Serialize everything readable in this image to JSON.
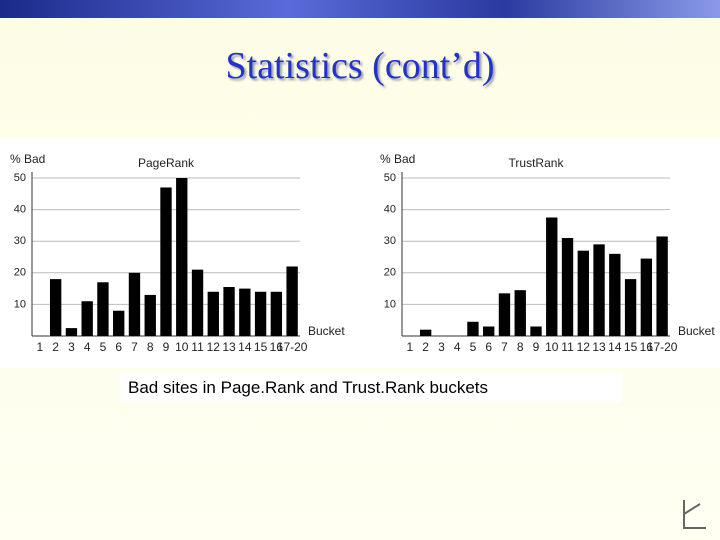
{
  "slide_title": "Statistics (cont’d)",
  "caption": "Bad sites in Page.Rank and Trust.Rank buckets",
  "chart_data": [
    {
      "type": "bar",
      "title": "PageRank",
      "y_label": "% Bad",
      "x_label": "Bucket",
      "categories": [
        "1",
        "2",
        "3",
        "4",
        "5",
        "6",
        "7",
        "8",
        "9",
        "10",
        "11",
        "12",
        "13",
        "14",
        "15",
        "16",
        "17-20"
      ],
      "values": [
        0,
        18,
        2.5,
        11,
        17,
        8,
        20,
        13,
        47,
        50,
        21,
        14,
        15.5,
        15,
        14,
        14,
        22
      ],
      "color": "#000000",
      "ylim": [
        0,
        50
      ],
      "yticks": [
        10,
        20,
        30,
        40,
        50
      ],
      "grid": true
    },
    {
      "type": "bar",
      "title": "TrustRank",
      "y_label": "% Bad",
      "x_label": "Bucket",
      "categories": [
        "1",
        "2",
        "3",
        "4",
        "5",
        "6",
        "7",
        "8",
        "9",
        "10",
        "11",
        "12",
        "13",
        "14",
        "15",
        "16",
        "17-20"
      ],
      "values": [
        0,
        2,
        0,
        0,
        4.5,
        3,
        13.5,
        14.5,
        3,
        37.5,
        31,
        27,
        29,
        26,
        18,
        24.5,
        31.5
      ],
      "color": "#000000",
      "ylim": [
        0,
        50
      ],
      "yticks": [
        10,
        20,
        30,
        40,
        50
      ],
      "grid": true
    }
  ]
}
